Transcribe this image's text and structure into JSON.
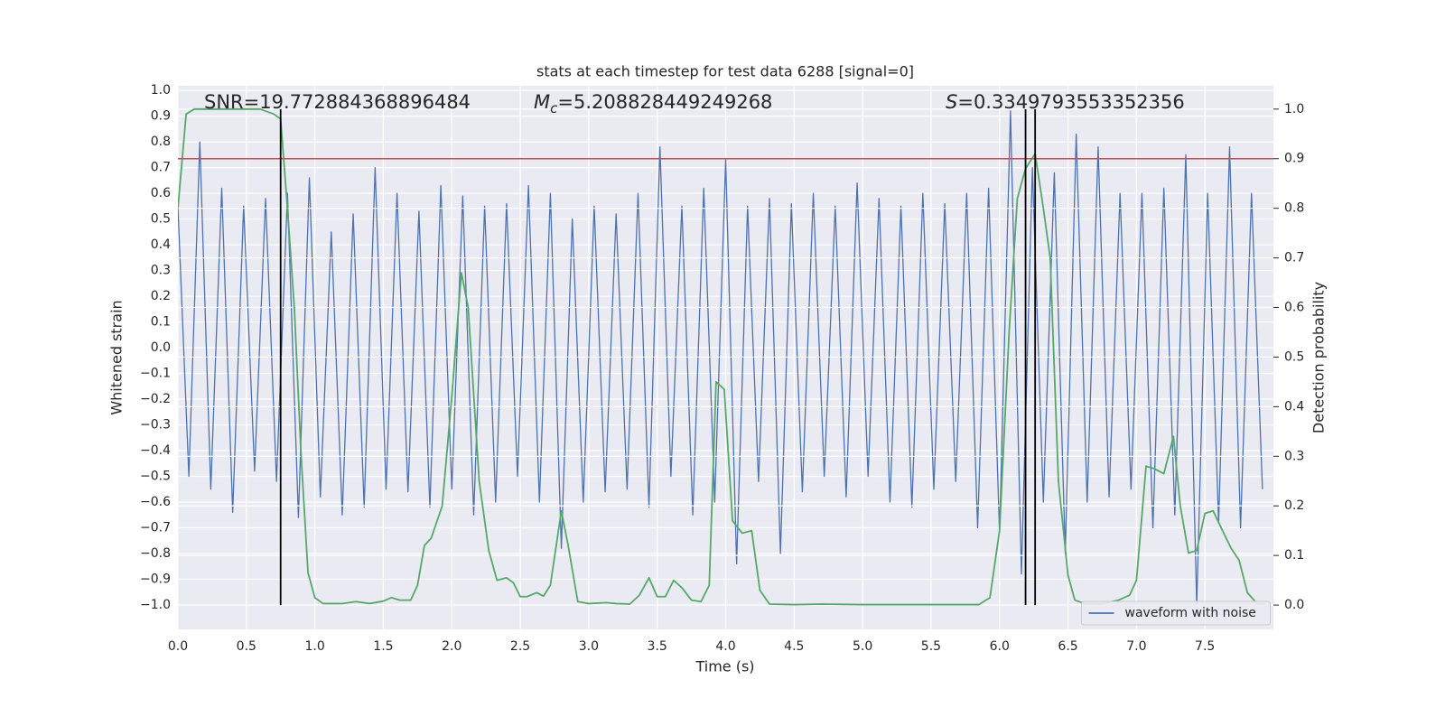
{
  "chart_data": {
    "type": "line",
    "title": "stats at each timestep for test data 6288 [signal=0]",
    "x_label": "Time (s)",
    "y_label": "Whitened strain",
    "y2_label": "Detection probability",
    "annotations": [
      {
        "text": "SNR=19.772884368896484"
      },
      {
        "symbol": "M",
        "subscript": "c",
        "text": "=5.208828449249268"
      },
      {
        "symbol": "S",
        "text": "=0.3349793553352356"
      }
    ],
    "xlim": [
      0,
      8.0
    ],
    "ylim": [
      -1.095,
      1.018
    ],
    "y2lim": [
      -0.049,
      1.047
    ],
    "xticks": [
      {
        "value": 0,
        "label": "0.0"
      },
      0.5,
      {
        "value": 1,
        "label": "1.0"
      },
      1.5,
      {
        "value": 2,
        "label": "2.0"
      },
      2.5,
      {
        "value": 3,
        "label": "3.0"
      },
      3.5,
      {
        "value": 4,
        "label": "4.0"
      },
      4.5,
      {
        "value": 5,
        "label": "5.0"
      },
      5.5,
      {
        "value": 6,
        "label": "6.0"
      },
      6.5,
      {
        "value": 7,
        "label": "7.0"
      },
      7.5
    ],
    "yticks": [
      {
        "value": -1,
        "label": "−1.0"
      },
      {
        "value": -0.9,
        "label": "−0.9"
      },
      {
        "value": -0.8,
        "label": "−0.8"
      },
      {
        "value": -0.7,
        "label": "−0.7"
      },
      {
        "value": -0.6,
        "label": "−0.6"
      },
      {
        "value": -0.5,
        "label": "−0.5"
      },
      {
        "value": -0.4,
        "label": "−0.4"
      },
      {
        "value": -0.3,
        "label": "−0.3"
      },
      {
        "value": -0.2,
        "label": "−0.2"
      },
      {
        "value": -0.1,
        "label": "−0.1"
      },
      {
        "value": 0,
        "label": "0.0"
      },
      0.1,
      0.2,
      0.3,
      0.4,
      0.5,
      0.6,
      0.7,
      0.8,
      0.9,
      {
        "value": 1,
        "label": "1.0"
      }
    ],
    "y2ticks": [
      {
        "value": 0,
        "label": "0.0"
      },
      0.1,
      0.2,
      0.3,
      0.4,
      0.5,
      0.6,
      0.7,
      0.8,
      0.9,
      {
        "value": 1,
        "label": "1.0"
      }
    ],
    "grid": true,
    "legend": "lower right",
    "series": [
      {
        "name": "waveform with noise",
        "color": "#4c72b0",
        "x": [
          0,
          0.08,
          0.16,
          0.24,
          0.32,
          0.4,
          0.48,
          0.56,
          0.64,
          0.72,
          0.8,
          0.88,
          0.96,
          1.04,
          1.12,
          1.2,
          1.28,
          1.36,
          1.44,
          1.52,
          1.6,
          1.68,
          1.76,
          1.84,
          1.92,
          2,
          2.08,
          2.16,
          2.24,
          2.32,
          2.4,
          2.48,
          2.56,
          2.64,
          2.72,
          2.8,
          2.88,
          2.96,
          3.04,
          3.12,
          3.2,
          3.28,
          3.36,
          3.44,
          3.52,
          3.6,
          3.68,
          3.76,
          3.84,
          3.92,
          4,
          4.08,
          4.16,
          4.24,
          4.32,
          4.4,
          4.48,
          4.56,
          4.64,
          4.72,
          4.8,
          4.88,
          4.96,
          5.04,
          5.12,
          5.2,
          5.28,
          5.36,
          5.44,
          5.52,
          5.6,
          5.68,
          5.76,
          5.84,
          5.92,
          6,
          6.08,
          6.16,
          6.24,
          6.32,
          6.4,
          6.48,
          6.56,
          6.64,
          6.72,
          6.8,
          6.88,
          6.96,
          7.04,
          7.12,
          7.2,
          7.28,
          7.36,
          7.44,
          7.52,
          7.6,
          7.68,
          7.76,
          7.84,
          7.92
        ],
        "values": [
          0.55,
          -0.5,
          0.8,
          -0.55,
          0.62,
          -0.64,
          0.55,
          -0.48,
          0.58,
          -0.52,
          0.6,
          -0.66,
          0.66,
          -0.58,
          0.45,
          -0.65,
          0.52,
          -0.62,
          0.7,
          -0.55,
          0.6,
          -0.56,
          0.53,
          -0.62,
          0.63,
          -0.55,
          0.59,
          -0.65,
          0.55,
          -0.6,
          0.56,
          -0.5,
          0.63,
          -0.6,
          0.6,
          -0.78,
          0.5,
          -0.6,
          0.55,
          -0.56,
          0.52,
          -0.55,
          0.6,
          -0.62,
          0.78,
          -0.5,
          0.55,
          -0.65,
          0.62,
          -0.6,
          0.73,
          -0.84,
          0.55,
          -0.52,
          0.58,
          -0.8,
          0.56,
          -0.56,
          0.6,
          -0.5,
          0.55,
          -0.58,
          0.64,
          -0.5,
          0.58,
          -0.6,
          0.55,
          -0.62,
          0.6,
          -0.55,
          0.56,
          -0.52,
          0.6,
          -0.7,
          0.62,
          -0.72,
          0.92,
          -0.88,
          0.7,
          -0.6,
          0.68,
          -0.8,
          0.83,
          -0.6,
          0.78,
          -0.58,
          0.6,
          -0.55,
          0.6,
          -0.7,
          0.62,
          -0.65,
          0.75,
          -1.0,
          0.6,
          -0.68,
          0.78,
          -0.7,
          0.6,
          -0.55
        ]
      },
      {
        "color": "#55a868",
        "axis": "y2",
        "x": [
          0,
          0.06,
          0.12,
          0.6,
          0.7,
          0.75,
          0.8,
          0.85,
          0.9,
          0.95,
          1,
          1.06,
          1.2,
          1.3,
          1.4,
          1.5,
          1.56,
          1.62,
          1.7,
          1.75,
          1.8,
          1.85,
          1.93,
          2,
          2.07,
          2.12,
          2.2,
          2.27,
          2.33,
          2.4,
          2.45,
          2.5,
          2.55,
          2.62,
          2.67,
          2.72,
          2.8,
          2.85,
          2.92,
          3,
          3.13,
          3.2,
          3.3,
          3.37,
          3.44,
          3.5,
          3.56,
          3.62,
          3.68,
          3.75,
          3.82,
          3.88,
          3.93,
          3.99,
          4.05,
          4.12,
          4.19,
          4.25,
          4.32,
          4.5,
          4.7,
          5,
          5.5,
          5.85,
          5.93,
          6,
          6.07,
          6.13,
          6.19,
          6.26,
          6.32,
          6.37,
          6.43,
          6.5,
          6.55,
          6.62,
          6.75,
          6.87,
          6.95,
          7,
          7.07,
          7.13,
          7.2,
          7.27,
          7.32,
          7.38,
          7.44,
          7.5,
          7.56,
          7.62,
          7.69,
          7.75,
          7.81,
          7.88,
          7.94
        ],
        "values": [
          0.8,
          0.99,
          1.0,
          1.0,
          0.99,
          0.98,
          0.8,
          0.6,
          0.3,
          0.065,
          0.015,
          0.003,
          0.003,
          0.007,
          0.003,
          0.008,
          0.015,
          0.01,
          0.01,
          0.04,
          0.12,
          0.135,
          0.2,
          0.42,
          0.67,
          0.6,
          0.25,
          0.11,
          0.05,
          0.055,
          0.045,
          0.017,
          0.017,
          0.025,
          0.018,
          0.04,
          0.19,
          0.12,
          0.007,
          0.003,
          0.005,
          0.003,
          0.002,
          0.02,
          0.055,
          0.017,
          0.017,
          0.05,
          0.035,
          0.01,
          0.007,
          0.04,
          0.45,
          0.435,
          0.17,
          0.145,
          0.15,
          0.03,
          0.002,
          0.001,
          0.002,
          0.001,
          0.001,
          0.001,
          0.015,
          0.15,
          0.55,
          0.82,
          0.88,
          0.91,
          0.8,
          0.7,
          0.25,
          0.06,
          0.01,
          0.003,
          0.003,
          0.01,
          0.02,
          0.05,
          0.28,
          0.275,
          0.265,
          0.34,
          0.2,
          0.105,
          0.11,
          0.185,
          0.19,
          0.155,
          0.115,
          0.09,
          0.025,
          0.003,
          0.002
        ]
      }
    ],
    "hline": {
      "value": 0.9,
      "axis": "y2",
      "color": "#c44e52"
    },
    "vlines": {
      "x": [
        0.75,
        6.19,
        6.26
      ],
      "y2": [
        0,
        1
      ],
      "color": "#000000"
    }
  }
}
